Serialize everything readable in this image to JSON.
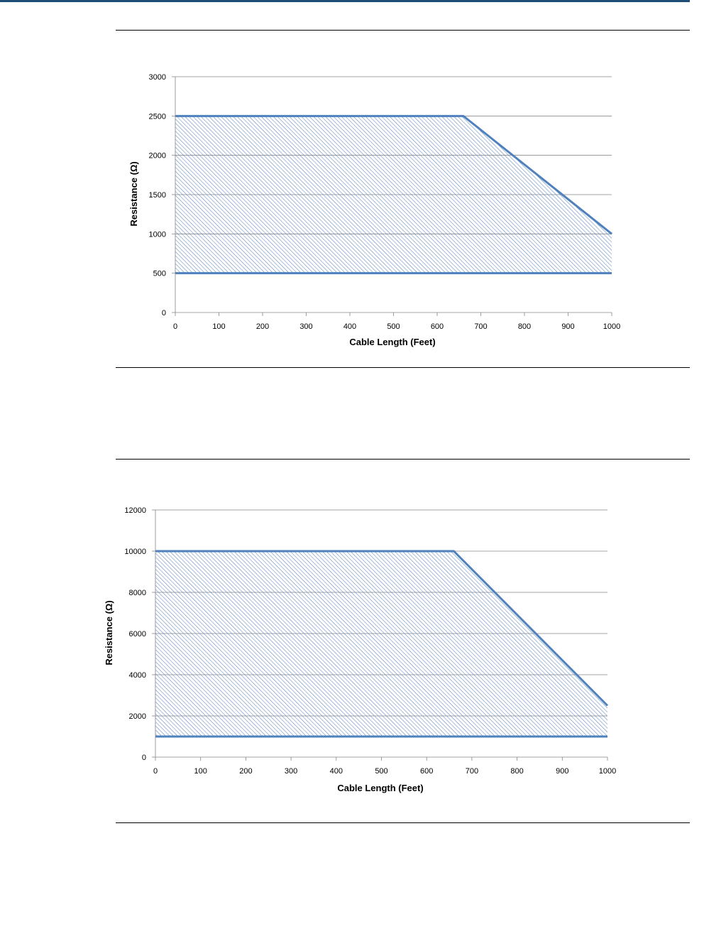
{
  "chart_data": [
    {
      "type": "area",
      "xlabel": "Cable Length (Feet)",
      "ylabel": "Resistance (Ω)",
      "xlim": [
        0,
        1000
      ],
      "ylim": [
        0,
        3000
      ],
      "x_ticks": [
        0,
        100,
        200,
        300,
        400,
        500,
        600,
        700,
        800,
        900,
        1000
      ],
      "y_ticks": [
        0,
        500,
        1000,
        1500,
        2000,
        2500,
        3000
      ],
      "grid": "horizontal",
      "fill": "diagonal-hatch",
      "line_color": "#4f81bd",
      "series": [
        {
          "x": [
            0,
            660,
            1000
          ],
          "values": [
            2500,
            2500,
            1000
          ]
        },
        {
          "x": [
            0,
            1000
          ],
          "values": [
            500,
            500
          ]
        }
      ]
    },
    {
      "type": "area",
      "xlabel": "Cable Length (Feet)",
      "ylabel": "Resistance (Ω)",
      "xlim": [
        0,
        1000
      ],
      "ylim": [
        0,
        12000
      ],
      "x_ticks": [
        0,
        100,
        200,
        300,
        400,
        500,
        600,
        700,
        800,
        900,
        1000
      ],
      "y_ticks": [
        0,
        2000,
        4000,
        6000,
        8000,
        10000,
        12000
      ],
      "grid": "horizontal",
      "fill": "diagonal-hatch",
      "line_color": "#4f81bd",
      "series": [
        {
          "x": [
            0,
            660,
            1000
          ],
          "values": [
            10000,
            10000,
            2500
          ]
        },
        {
          "x": [
            0,
            1000
          ],
          "values": [
            1000,
            1000
          ]
        }
      ]
    }
  ]
}
